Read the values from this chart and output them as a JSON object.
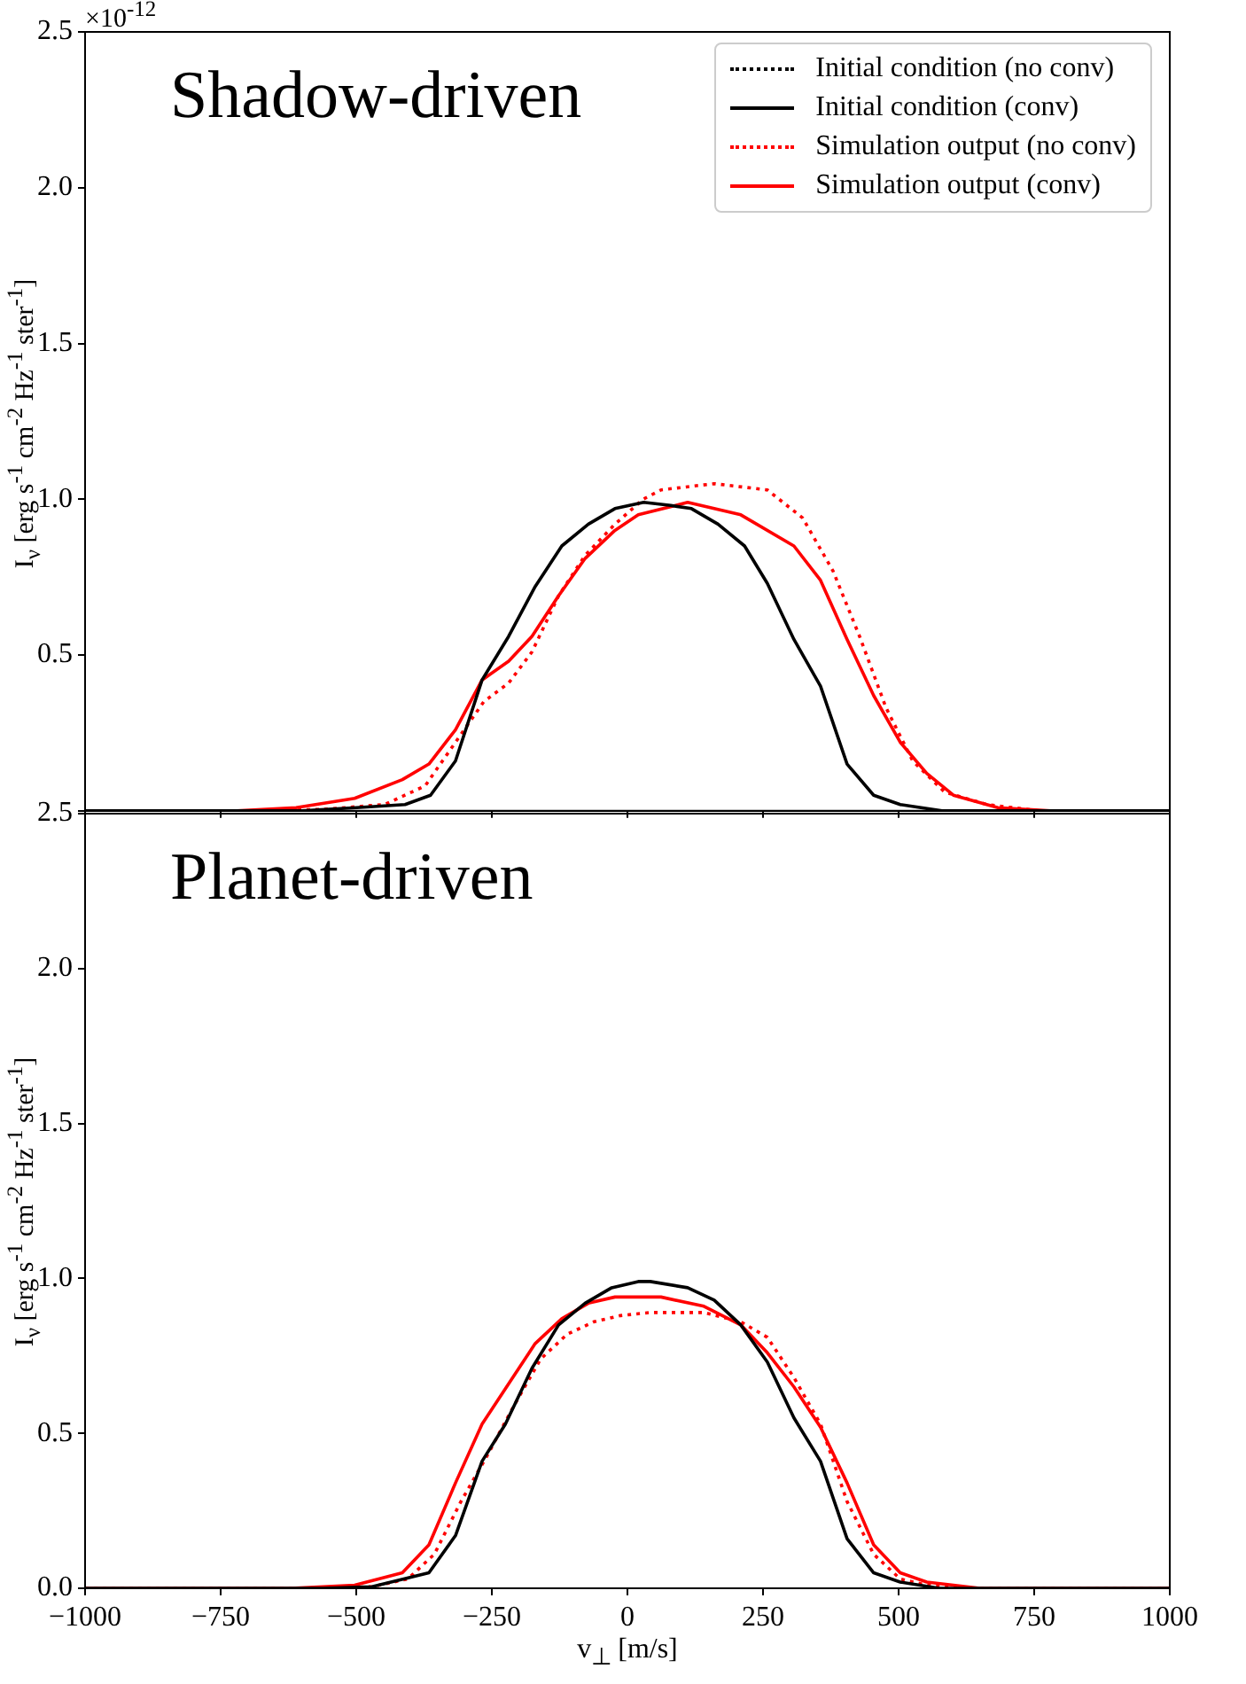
{
  "chart_data": [
    {
      "type": "line",
      "title": "Shadow-driven",
      "ylabel": "I$_{ν}$ [erg s$^{-1}$ cm$^{-2}$ Hz$^{-1}$ ster$^{-1}$]",
      "annotations": [
        "×10$^{-12}$"
      ],
      "xlim": [
        -1000,
        1000
      ],
      "xticks": [
        -1000,
        -750,
        -500,
        -250,
        0,
        250,
        500,
        750,
        1000
      ],
      "ylim": [
        0,
        2.5
      ],
      "yticks": [
        {
          "value": 0,
          "label": null
        },
        0.5,
        {
          "value": 1,
          "label": "1.0"
        },
        1.5,
        {
          "value": 2,
          "label": "2.0"
        },
        2.5
      ],
      "tick_labels": "y",
      "grid": false,
      "legend": "top right",
      "marker": "none",
      "series": [
        {
          "name": "Initial condition (no conv)",
          "color": "#000000",
          "line_style": "dotted"
        },
        {
          "name": "Initial condition (conv)",
          "color": "#000000",
          "line_style": "solid",
          "x": [
            -1000,
            -600,
            -500,
            -410,
            -363,
            -317,
            -268,
            -219,
            -170,
            -121,
            -72,
            -23,
            30,
            80,
            118,
            167,
            216,
            258,
            307,
            356,
            405,
            454,
            503,
            580,
            1000
          ],
          "values": [
            0,
            0,
            0.01,
            0.02,
            0.05,
            0.16,
            0.42,
            0.56,
            0.72,
            0.85,
            0.92,
            0.97,
            0.99,
            0.98,
            0.97,
            0.92,
            0.85,
            0.73,
            0.55,
            0.4,
            0.15,
            0.05,
            0.02,
            0,
            0
          ]
        },
        {
          "name": "Simulation output (no conv)",
          "color": "#ff0000",
          "line_style": "dotted",
          "x": [
            -1000,
            -650,
            -559,
            -448,
            -373,
            -317,
            -265,
            -219,
            -176,
            -127,
            -78,
            -23,
            29,
            62,
            160,
            258,
            323,
            379,
            428,
            477,
            526,
            585,
            663,
            760,
            1000
          ],
          "values": [
            0,
            0,
            0.005,
            0.02,
            0.08,
            0.22,
            0.35,
            0.41,
            0.51,
            0.69,
            0.82,
            0.92,
            1.0,
            1.03,
            1.05,
            1.03,
            0.94,
            0.77,
            0.56,
            0.33,
            0.16,
            0.06,
            0.02,
            0,
            0
          ]
        },
        {
          "name": "Simulation output (conv)",
          "color": "#ff0000",
          "line_style": "solid",
          "x": [
            -1000,
            -720,
            -611,
            -503,
            -415,
            -366,
            -317,
            -268,
            -219,
            -176,
            -127,
            -78,
            -23,
            20,
            111,
            209,
            307,
            356,
            405,
            454,
            503,
            552,
            601,
            683,
            780,
            1000
          ],
          "values": [
            0,
            0,
            0.01,
            0.04,
            0.1,
            0.15,
            0.26,
            0.42,
            0.48,
            0.56,
            0.69,
            0.81,
            0.9,
            0.95,
            0.99,
            0.95,
            0.85,
            0.74,
            0.55,
            0.37,
            0.22,
            0.12,
            0.05,
            0.01,
            0,
            0
          ]
        }
      ]
    },
    {
      "type": "line",
      "title": "Planet-driven",
      "xlabel": "v$_{⊥}$ [m/s]",
      "ylabel": "I$_{ν}$ [erg s$^{-1}$ cm$^{-2}$ Hz$^{-1}$ ster$^{-1}$]",
      "xlim": [
        -1000,
        1000
      ],
      "xticks": [
        -1000,
        -750,
        -500,
        -250,
        0,
        250,
        500,
        750,
        1000
      ],
      "ylim": [
        0,
        2.5
      ],
      "yticks": [
        {
          "value": 0,
          "label": "0.0"
        },
        0.5,
        {
          "value": 1,
          "label": "1.0"
        },
        1.5,
        {
          "value": 2,
          "label": "2.0"
        },
        2.5
      ],
      "grid": false,
      "marker": "none",
      "series": [
        {
          "color": "#000000",
          "line_style": "solid",
          "x": [
            -1000,
            -560,
            -471,
            -366,
            -317,
            -268,
            -225,
            -176,
            -127,
            -78,
            -29,
            20,
            42,
            111,
            160,
            209,
            258,
            307,
            356,
            405,
            454,
            503,
            575,
            1000
          ],
          "values": [
            0,
            0,
            0.005,
            0.05,
            0.17,
            0.41,
            0.53,
            0.71,
            0.85,
            0.92,
            0.97,
            0.99,
            0.99,
            0.97,
            0.93,
            0.85,
            0.73,
            0.55,
            0.41,
            0.16,
            0.05,
            0.02,
            0,
            0
          ]
        },
        {
          "color": "#ff0000",
          "line_style": "dotted",
          "x": [
            -1000,
            -540,
            -471,
            -405,
            -356,
            -307,
            -258,
            -209,
            -160,
            -111,
            -62,
            -13,
            42,
            141,
            209,
            258,
            307,
            356,
            405,
            454,
            503,
            552,
            620,
            1000
          ],
          "values": [
            0,
            0,
            0.005,
            0.03,
            0.11,
            0.28,
            0.43,
            0.59,
            0.74,
            0.82,
            0.86,
            0.88,
            0.89,
            0.89,
            0.86,
            0.81,
            0.68,
            0.53,
            0.28,
            0.11,
            0.03,
            0.01,
            0,
            0
          ]
        },
        {
          "color": "#ff0000",
          "line_style": "solid",
          "x": [
            -1000,
            -620,
            -503,
            -415,
            -366,
            -317,
            -268,
            -219,
            -170,
            -121,
            -72,
            -23,
            62,
            141,
            209,
            258,
            307,
            356,
            405,
            454,
            503,
            552,
            650,
            1000
          ],
          "values": [
            0,
            0,
            0.01,
            0.05,
            0.14,
            0.34,
            0.53,
            0.66,
            0.79,
            0.87,
            0.92,
            0.94,
            0.94,
            0.91,
            0.85,
            0.76,
            0.65,
            0.52,
            0.34,
            0.14,
            0.05,
            0.02,
            0,
            0
          ]
        }
      ]
    }
  ]
}
